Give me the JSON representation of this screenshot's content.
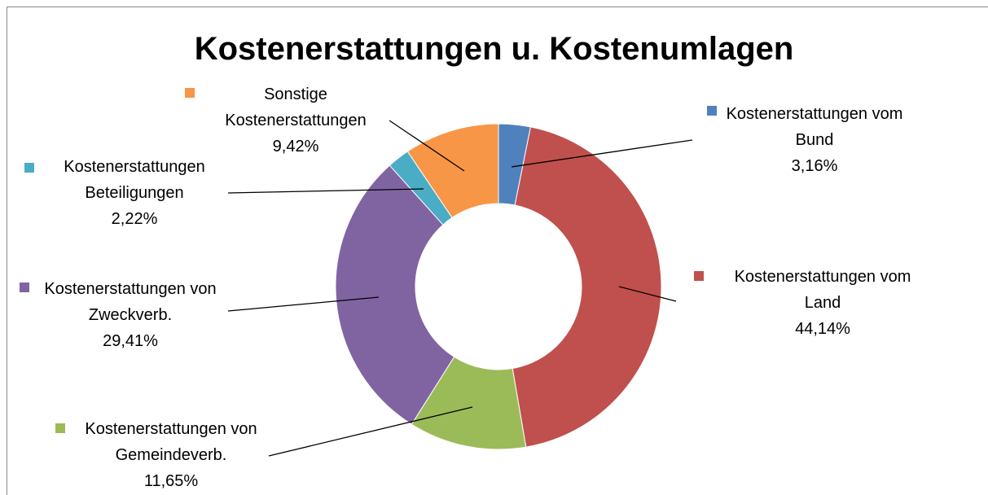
{
  "chart_data": {
    "type": "donut",
    "title": "Kostenerstattungen u. Kostenumlagen",
    "categories": [
      "Kostenerstattungen vom Bund",
      "Kostenerstattungen vom Land",
      "Kostenerstattungen von Gemeindeverb.",
      "Kostenerstattungen von Zweckverb.",
      "Kostenerstattungen Beteiligungen",
      "Sonstige Kostenerstattungen"
    ],
    "values": [
      3.16,
      44.14,
      11.65,
      29.41,
      2.22,
      9.42
    ],
    "value_labels": [
      "3,16%",
      "44,14%",
      "11,65%",
      "29,41%",
      "2,22%",
      "9,42%"
    ],
    "colors": [
      "#4f81bd",
      "#c0504d",
      "#9bbb59",
      "#8064a2",
      "#4bacc6",
      "#f79646"
    ]
  }
}
